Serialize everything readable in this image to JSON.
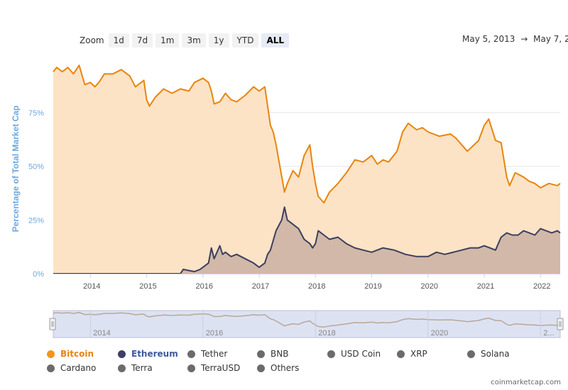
{
  "toolbar": {
    "zoom_label": "Zoom",
    "buttons": [
      "1d",
      "7d",
      "1m",
      "3m",
      "1y",
      "YTD",
      "ALL"
    ],
    "active": "ALL",
    "range_from": "May 5, 2013",
    "range_sep": "→",
    "range_to": "May 7, 2"
  },
  "chart_data": {
    "type": "area",
    "ylabel": "Percentage of Total Market Cap",
    "yticks": [
      "0%",
      "25%",
      "50%",
      "75%"
    ],
    "ylim": [
      0,
      100
    ],
    "xlim": [
      2013.34,
      2022.35
    ],
    "xticks": [
      "2014",
      "2015",
      "2016",
      "2017",
      "2018",
      "2019",
      "2020",
      "2021",
      "2022"
    ],
    "navigator_ticks": [
      "2014",
      "2016",
      "2018",
      "2020",
      "2..."
    ],
    "grid": true,
    "series": [
      {
        "name": "Bitcoin",
        "color": "#e8850f",
        "fill": "#fce3c6",
        "x": [
          2013.34,
          2013.4,
          2013.5,
          2013.6,
          2013.7,
          2013.8,
          2013.9,
          2014.0,
          2014.08,
          2014.15,
          2014.25,
          2014.4,
          2014.55,
          2014.7,
          2014.8,
          2014.95,
          2015.0,
          2015.05,
          2015.15,
          2015.3,
          2015.45,
          2015.6,
          2015.75,
          2015.85,
          2016.0,
          2016.1,
          2016.15,
          2016.2,
          2016.3,
          2016.4,
          2016.5,
          2016.6,
          2016.75,
          2016.9,
          2017.0,
          2017.1,
          2017.2,
          2017.25,
          2017.3,
          2017.45,
          2017.5,
          2017.6,
          2017.7,
          2017.8,
          2017.9,
          2017.95,
          2018.0,
          2018.05,
          2018.15,
          2018.25,
          2018.4,
          2018.55,
          2018.7,
          2018.85,
          2019.0,
          2019.1,
          2019.2,
          2019.3,
          2019.45,
          2019.55,
          2019.65,
          2019.8,
          2019.9,
          2020.0,
          2020.2,
          2020.4,
          2020.5,
          2020.6,
          2020.7,
          2020.9,
          2021.0,
          2021.08,
          2021.2,
          2021.3,
          2021.4,
          2021.45,
          2021.55,
          2021.7,
          2021.8,
          2021.9,
          2022.0,
          2022.15,
          2022.3,
          2022.35
        ],
        "values": [
          94,
          96,
          94,
          96,
          93,
          97,
          88,
          89,
          87,
          89,
          93,
          93,
          95,
          92,
          87,
          90,
          81,
          78,
          82,
          86,
          84,
          86,
          85,
          89,
          91,
          89,
          85,
          79,
          80,
          84,
          81,
          80,
          83,
          87,
          85,
          87,
          69,
          66,
          60,
          38,
          42,
          48,
          45,
          55,
          60,
          50,
          42,
          36,
          33,
          38,
          42,
          47,
          53,
          52,
          55,
          51,
          53,
          52,
          57,
          66,
          70,
          67,
          68,
          66,
          64,
          65,
          63,
          60,
          57,
          62,
          69,
          72,
          62,
          61,
          45,
          41,
          47,
          45,
          43,
          42,
          40,
          42,
          41,
          42
        ]
      },
      {
        "name": "Ethereum",
        "color": "#3c3f5e",
        "fill": "#d2b8a8",
        "x": [
          2013.34,
          2015.6,
          2015.65,
          2015.75,
          2015.85,
          2015.95,
          2016.1,
          2016.15,
          2016.2,
          2016.3,
          2016.35,
          2016.4,
          2016.5,
          2016.6,
          2016.75,
          2016.9,
          2017.0,
          2017.1,
          2017.15,
          2017.2,
          2017.3,
          2017.4,
          2017.45,
          2017.5,
          2017.6,
          2017.7,
          2017.8,
          2017.9,
          2017.95,
          2018.0,
          2018.05,
          2018.15,
          2018.25,
          2018.4,
          2018.55,
          2018.7,
          2018.85,
          2019.0,
          2019.2,
          2019.4,
          2019.6,
          2019.8,
          2020.0,
          2020.15,
          2020.3,
          2020.45,
          2020.6,
          2020.75,
          2020.9,
          2021.0,
          2021.1,
          2021.2,
          2021.3,
          2021.4,
          2021.5,
          2021.6,
          2021.7,
          2021.8,
          2021.9,
          2022.0,
          2022.1,
          2022.2,
          2022.3,
          2022.35
        ],
        "values": [
          0,
          0,
          2,
          1.5,
          1,
          2,
          5,
          12,
          7,
          13,
          9,
          10,
          8,
          9,
          7,
          5,
          3,
          5,
          9,
          11,
          20,
          25,
          31,
          25,
          23,
          21,
          16,
          14,
          12,
          14,
          20,
          18,
          16,
          17,
          14,
          12,
          11,
          10,
          12,
          11,
          9,
          8,
          8,
          10,
          9,
          10,
          11,
          12,
          12,
          13,
          12,
          11,
          17,
          19,
          18,
          18,
          20,
          19,
          18,
          21,
          20,
          19,
          20,
          19
        ]
      }
    ],
    "legend_position": "bottom",
    "legend": [
      "Bitcoin",
      "Ethereum",
      "Tether",
      "BNB",
      "USD Coin",
      "XRP",
      "Solana",
      "Cardano",
      "Terra",
      "TerraUSD",
      "Others"
    ]
  },
  "legend_colors": {
    "Bitcoin": "#e8850f",
    "Ethereum": "#3b3f6b",
    "inactive": "#6b6b6b"
  },
  "credit": "coinmarketcap.com"
}
